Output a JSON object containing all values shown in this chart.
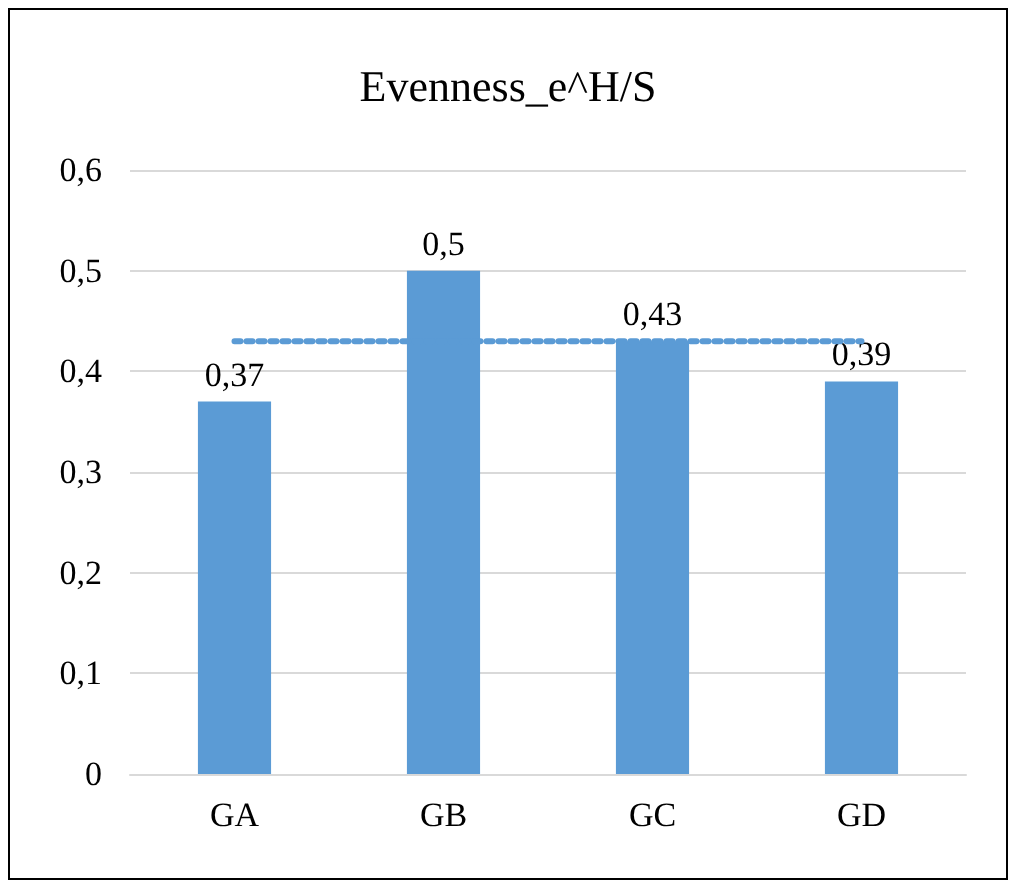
{
  "chart_data": {
    "type": "bar",
    "title": "Evenness_e^H/S",
    "categories": [
      "GA",
      "GB",
      "GC",
      "GD"
    ],
    "series": [
      {
        "color": "#5b9bd5",
        "values": [
          0.37,
          0.5,
          0.43,
          0.39
        ],
        "value_labels": [
          "0,37",
          "0,5",
          "0,43",
          "0,39"
        ]
      },
      {
        "type": "line",
        "color": "#5b9bd5",
        "values": [
          0.43,
          0.43,
          0.43,
          0.43
        ],
        "line_style": "dotted",
        "marker": "none"
      }
    ],
    "ylim": [
      0,
      0.6
    ],
    "yticks": [
      {
        "value": 0,
        "label": "0"
      },
      {
        "value": 0.1,
        "label": "0,1"
      },
      {
        "value": 0.2,
        "label": "0,2"
      },
      {
        "value": 0.3,
        "label": "0,3"
      },
      {
        "value": 0.4,
        "label": "0,4"
      },
      {
        "value": 0.5,
        "label": "0,5"
      },
      {
        "value": 0.6,
        "label": "0,6"
      }
    ],
    "grid": "y"
  }
}
